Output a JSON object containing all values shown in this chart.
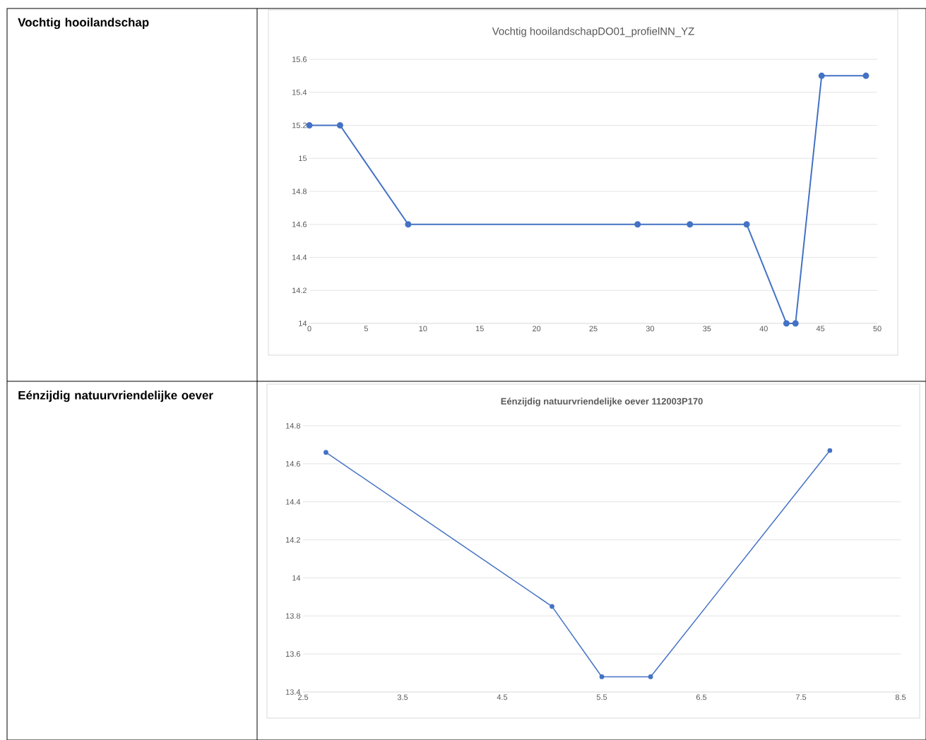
{
  "chart_data": [
    {
      "type": "line",
      "title": "Vochtig hooilandschapDO01_profielNN_YZ",
      "annotations": [
        "Vochtig hooilandschap"
      ],
      "x": [
        0,
        2.7,
        8.7,
        28.9,
        33.5,
        38.5,
        42.0,
        42.8,
        45.1,
        49.0
      ],
      "series": [
        {
          "color": "#4472c4",
          "values": [
            15.2,
            15.2,
            14.6,
            14.6,
            14.6,
            14.6,
            14.0,
            14.0,
            15.5,
            15.5
          ]
        }
      ],
      "xlim": [
        0,
        50
      ],
      "xticks": [
        0,
        5,
        10,
        15,
        20,
        25,
        30,
        35,
        40,
        45,
        50
      ],
      "ylim": [
        14,
        15.6
      ],
      "yticks": [
        14,
        14.2,
        14.4,
        14.6,
        14.8,
        15,
        15.2,
        15.4,
        15.6
      ],
      "grid": "y",
      "marker": "circle",
      "line_style": "solid"
    },
    {
      "type": "line",
      "title": "Eénzijdig natuurvriendelijke oever 112003P170",
      "annotations": [
        "Eénzijdig natuurvriendelijke oever"
      ],
      "x": [
        2.73,
        5.0,
        5.5,
        5.99,
        7.79
      ],
      "series": [
        {
          "color": "#4472c4",
          "values": [
            14.66,
            13.85,
            13.48,
            13.48,
            14.67
          ]
        }
      ],
      "xlim": [
        2.5,
        8.5
      ],
      "xticks": [
        2.5,
        3.5,
        4.5,
        5.5,
        6.5,
        7.5,
        8.5
      ],
      "ylim": [
        13.4,
        14.8
      ],
      "yticks": [
        13.4,
        13.6,
        13.8,
        14,
        14.2,
        14.4,
        14.6,
        14.8
      ],
      "grid": "y",
      "marker": "circle",
      "line_style": "solid"
    }
  ]
}
